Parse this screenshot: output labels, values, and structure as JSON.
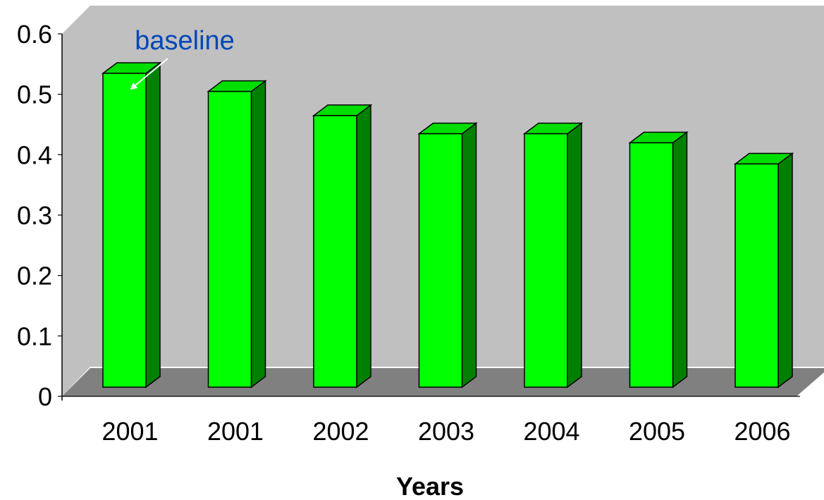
{
  "chart_data": {
    "type": "bar",
    "categories": [
      "2001",
      "2001",
      "2002",
      "2003",
      "2004",
      "2005",
      "2006"
    ],
    "values": [
      0.53,
      0.5,
      0.46,
      0.43,
      0.43,
      0.415,
      0.38
    ],
    "xlabel": "Years",
    "ylabel": "",
    "ylim": [
      0,
      0.6
    ],
    "yticks": [
      "0",
      "0.1",
      "0.2",
      "0.3",
      "0.4",
      "0.5",
      "0.6"
    ],
    "grid": false,
    "annotation": {
      "text": "baseline",
      "target_index": 0
    },
    "colors": {
      "bar_front": "#00ff00",
      "bar_side": "#008000",
      "bar_top": "#00dd00",
      "back_wall": "#c0c0c0",
      "floor": "#808080",
      "annotation_text": "#0047bb",
      "annotation_arrow": "#ffffff"
    }
  }
}
